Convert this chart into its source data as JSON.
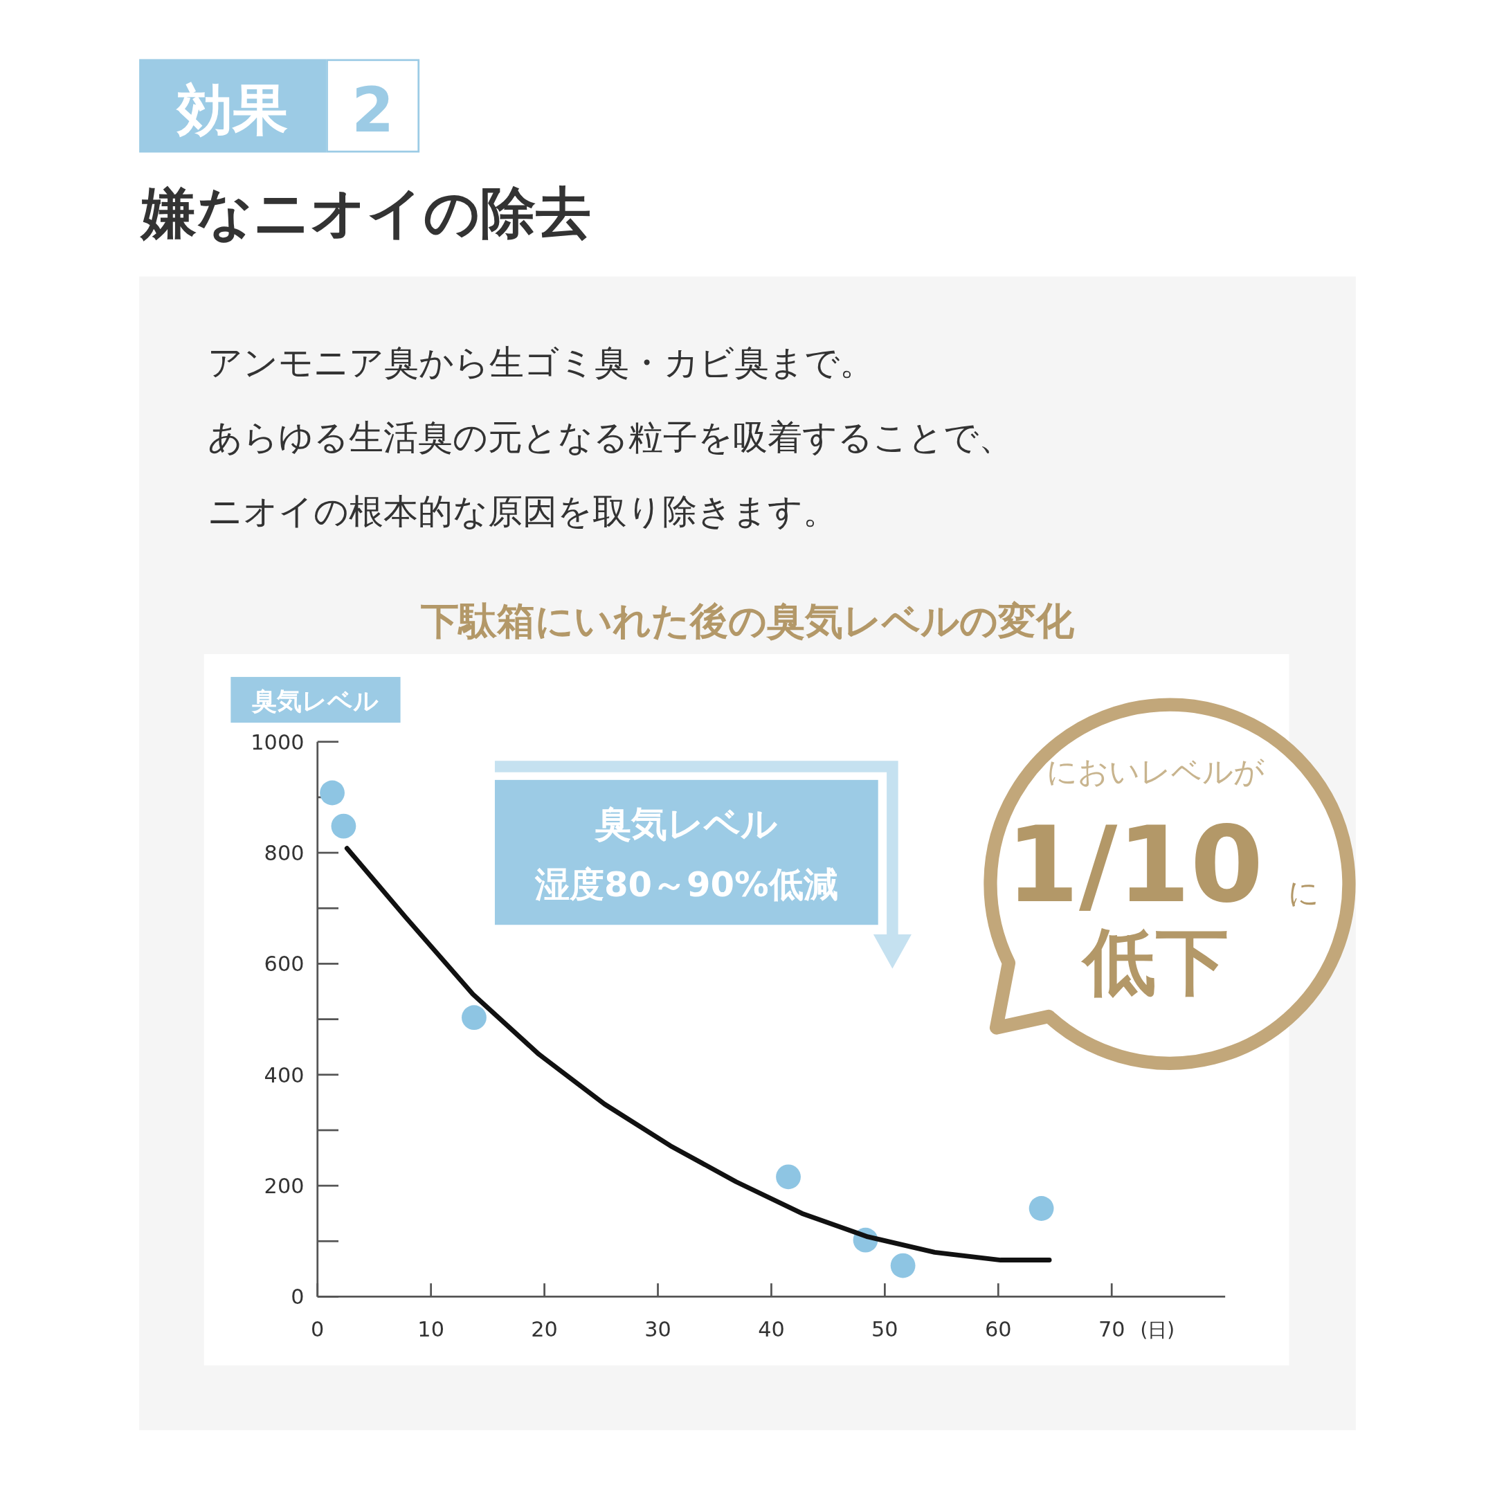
{
  "chart_data": {
    "type": "scatter",
    "title": "下駄箱にいれた後の臭気レベルの変化",
    "ylabel": "臭気レベル",
    "xlabel": "(日)",
    "annotations": [
      "効果",
      "2",
      "嫌なニオイの除去",
      "アンモニア臭から生ゴミ臭・カビ臭まで。",
      "あらゆる生活臭の元となる粒子を吸着することで、",
      "ニオイの根本的な原因を取り除きます。",
      "臭気レベル",
      "湿度80～90%低減",
      "においレベルが",
      "1/10",
      "に",
      "低下"
    ],
    "xlim": [
      0,
      80
    ],
    "xticks": [
      0,
      10,
      20,
      30,
      40,
      50,
      60,
      70
    ],
    "ylim": [
      0,
      1000
    ],
    "yticks": [
      0,
      200,
      400,
      600,
      800,
      1000
    ],
    "grid": false,
    "series": [
      {
        "type": "scatter",
        "marker": "circle",
        "color": "#8ec5e3",
        "x": [
          1.3,
          2.3,
          13.8,
          41.5,
          48.3,
          51.6,
          63.8
        ],
        "values": [
          908,
          848,
          503,
          216,
          102,
          56,
          159
        ]
      },
      {
        "type": "line",
        "marker": "none",
        "color": "#111111",
        "x": [
          2.6,
          7.8,
          13.7,
          19.5,
          25.3,
          31.1,
          36.9,
          42.7,
          48.5,
          54.4,
          60.2,
          64.5
        ],
        "values": [
          808,
          683,
          545,
          437,
          347,
          272,
          207,
          150,
          108,
          80,
          66,
          66
        ]
      }
    ]
  }
}
